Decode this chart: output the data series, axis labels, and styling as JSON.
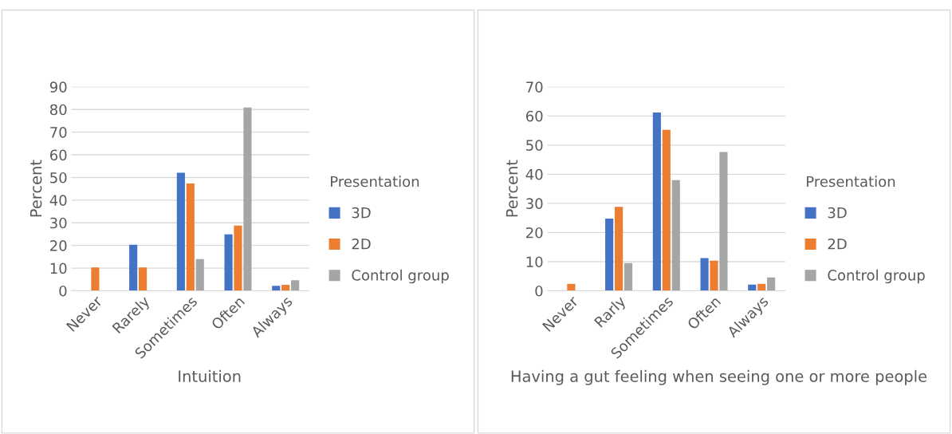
{
  "chart_data": [
    {
      "type": "bar",
      "xlabel": "Intuition",
      "ylabel": "Percent",
      "legend_title": "Presentation",
      "categories": [
        "Never",
        "Rarely",
        "Sometimes",
        "Often",
        "Always"
      ],
      "ylim": [
        0,
        90
      ],
      "yticks": [
        0,
        10,
        20,
        30,
        40,
        50,
        60,
        70,
        80,
        90
      ],
      "grid": "y",
      "legend": "right",
      "series": [
        {
          "name": "3D",
          "color": "#4472c4",
          "values": [
            0,
            20.3,
            52.1,
            24.9,
            2.2
          ]
        },
        {
          "name": "2D",
          "color": "#ed7d31",
          "values": [
            10.3,
            10.3,
            47.3,
            28.8,
            2.6
          ]
        },
        {
          "name": "Control group",
          "color": "#a5a5a5",
          "values": [
            0,
            0,
            14.0,
            80.9,
            4.7
          ]
        }
      ]
    },
    {
      "type": "bar",
      "xlabel": "Having a gut feeling when seeing one or more people",
      "ylabel": "Percent",
      "legend_title": "Presentation",
      "categories": [
        "Never",
        "Rarly",
        "Sometimes",
        "Often",
        "Always"
      ],
      "ylim": [
        0,
        70
      ],
      "yticks": [
        0,
        10,
        20,
        30,
        40,
        50,
        60,
        70
      ],
      "grid": "y",
      "legend": "right",
      "series": [
        {
          "name": "3D",
          "color": "#4472c4",
          "values": [
            0,
            24.8,
            61.2,
            11.2,
            2.1
          ]
        },
        {
          "name": "2D",
          "color": "#ed7d31",
          "values": [
            2.4,
            28.8,
            55.2,
            10.3,
            2.4
          ]
        },
        {
          "name": "Control group",
          "color": "#a5a5a5",
          "values": [
            0,
            9.5,
            38.0,
            47.6,
            4.6
          ]
        }
      ]
    }
  ]
}
